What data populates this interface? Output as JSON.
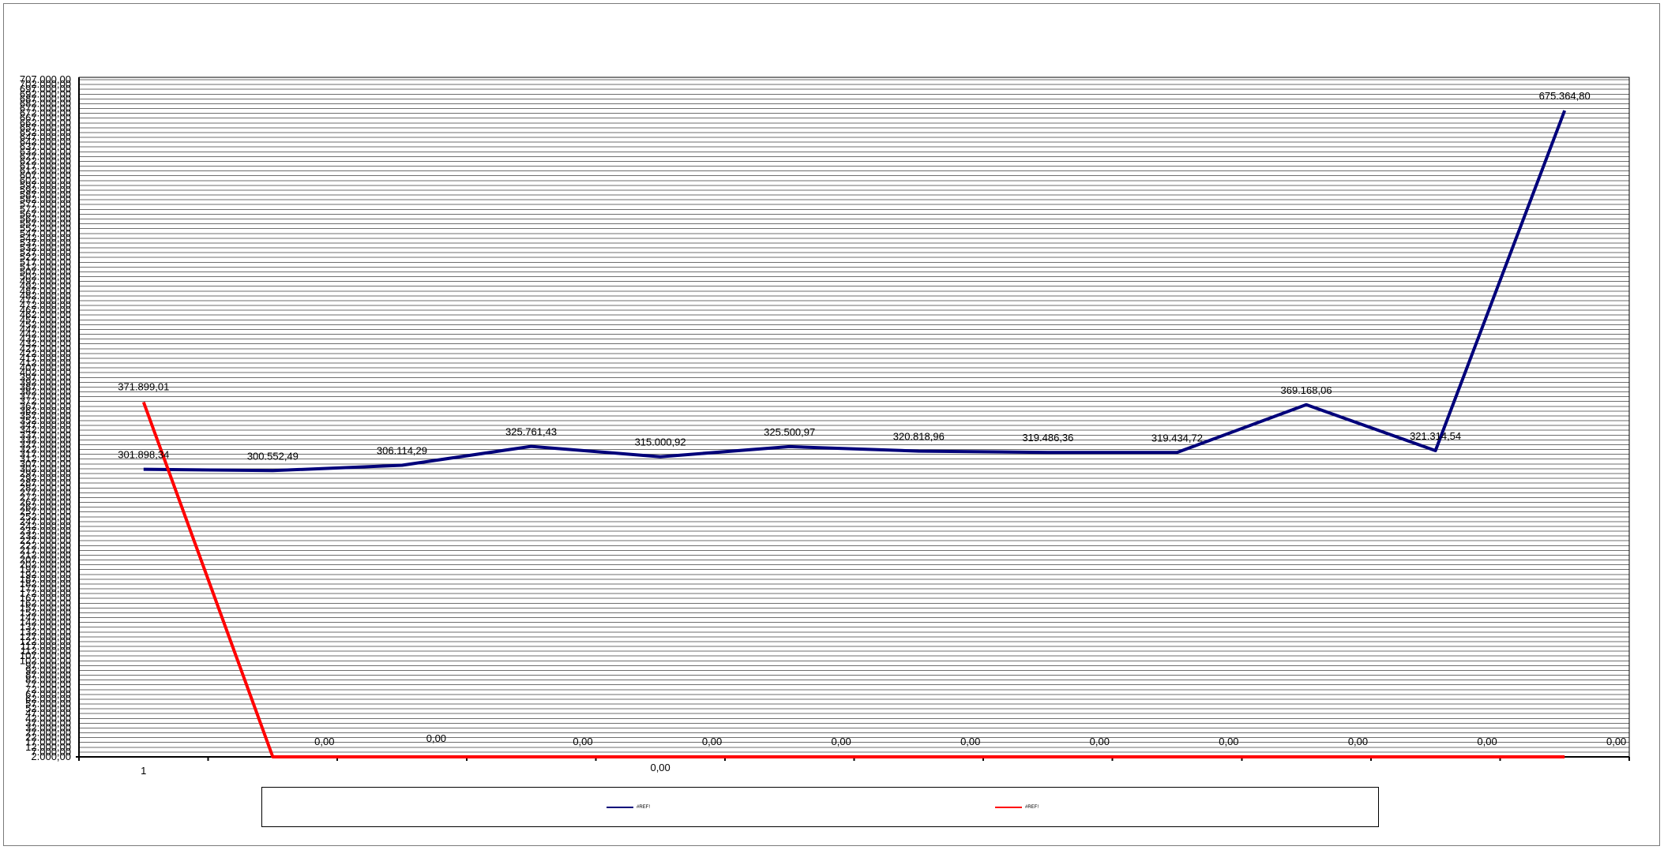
{
  "chart_data": {
    "type": "line",
    "x_tick_labels": [
      "1",
      "0,00"
    ],
    "ylim": [
      2500,
      710000
    ],
    "grid": true,
    "legend_position": "bottom",
    "series": [
      {
        "name": "#REF!",
        "color": "#00007a",
        "values": [
          301898.34,
          300552.49,
          306114.29,
          325761.43,
          315000.92,
          325500.97,
          320818.96,
          319486.36,
          319434.72,
          369168.06,
          321314.54,
          675364.8
        ],
        "labels": [
          "301.898,34",
          "300.552,49",
          "306.114,29",
          "325.761,43",
          "315.000,92",
          "325.500,97",
          "320.818,96",
          "319.486,36",
          "319.434,72",
          "369.168,06",
          "321.314,54",
          "675.364,80"
        ]
      },
      {
        "name": "#REF!",
        "color": "#ff0000",
        "values": [
          371899.01,
          0,
          0,
          0,
          0,
          0,
          0,
          0,
          0,
          0,
          0,
          0
        ],
        "labels": [
          "371.899,01",
          "0,00",
          "0,00",
          "0,00",
          "0,00",
          "0,00",
          "0,00",
          "0,00",
          "0,00",
          "0,00",
          "0,00",
          "0,00"
        ]
      }
    ],
    "y_tick_step": 5000,
    "y_tick_format": "###.000,00"
  }
}
